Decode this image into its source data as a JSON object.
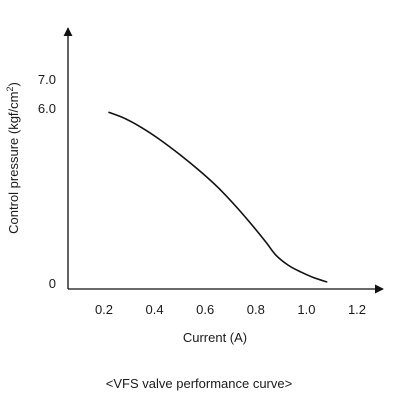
{
  "chart_data": {
    "type": "line",
    "caption": "<VFS valve performance curve>",
    "xlabel": "Current  (A)",
    "ylabel": "Control pressure  (kgf/cm",
    "ylabel_sup": "2",
    "ylabel_close": ")",
    "xlim": [
      0.1,
      1.25
    ],
    "ylim": [
      0,
      7.0
    ],
    "x_ticks": [
      {
        "value": 0.2,
        "label": "0.2"
      },
      {
        "value": 0.4,
        "label": "0.4"
      },
      {
        "value": 0.6,
        "label": "0.6"
      },
      {
        "value": 0.8,
        "label": "0.8"
      },
      {
        "value": 1.0,
        "label": "1.0"
      },
      {
        "value": 1.2,
        "label": "1.2"
      }
    ],
    "y_ticks": [
      {
        "value": 0,
        "label": "0"
      },
      {
        "value": 6.0,
        "label": "6.0"
      },
      {
        "value": 7.0,
        "label": "7.0"
      }
    ],
    "grid": false,
    "series": [
      {
        "color": "#111111",
        "points": [
          [
            0.22,
            5.85
          ],
          [
            0.28,
            5.65
          ],
          [
            0.35,
            5.32
          ],
          [
            0.42,
            4.92
          ],
          [
            0.5,
            4.4
          ],
          [
            0.58,
            3.83
          ],
          [
            0.65,
            3.28
          ],
          [
            0.72,
            2.64
          ],
          [
            0.78,
            2.04
          ],
          [
            0.84,
            1.4
          ],
          [
            0.88,
            0.95
          ],
          [
            0.93,
            0.6
          ],
          [
            0.98,
            0.37
          ],
          [
            1.03,
            0.18
          ],
          [
            1.08,
            0.04
          ]
        ]
      }
    ]
  }
}
